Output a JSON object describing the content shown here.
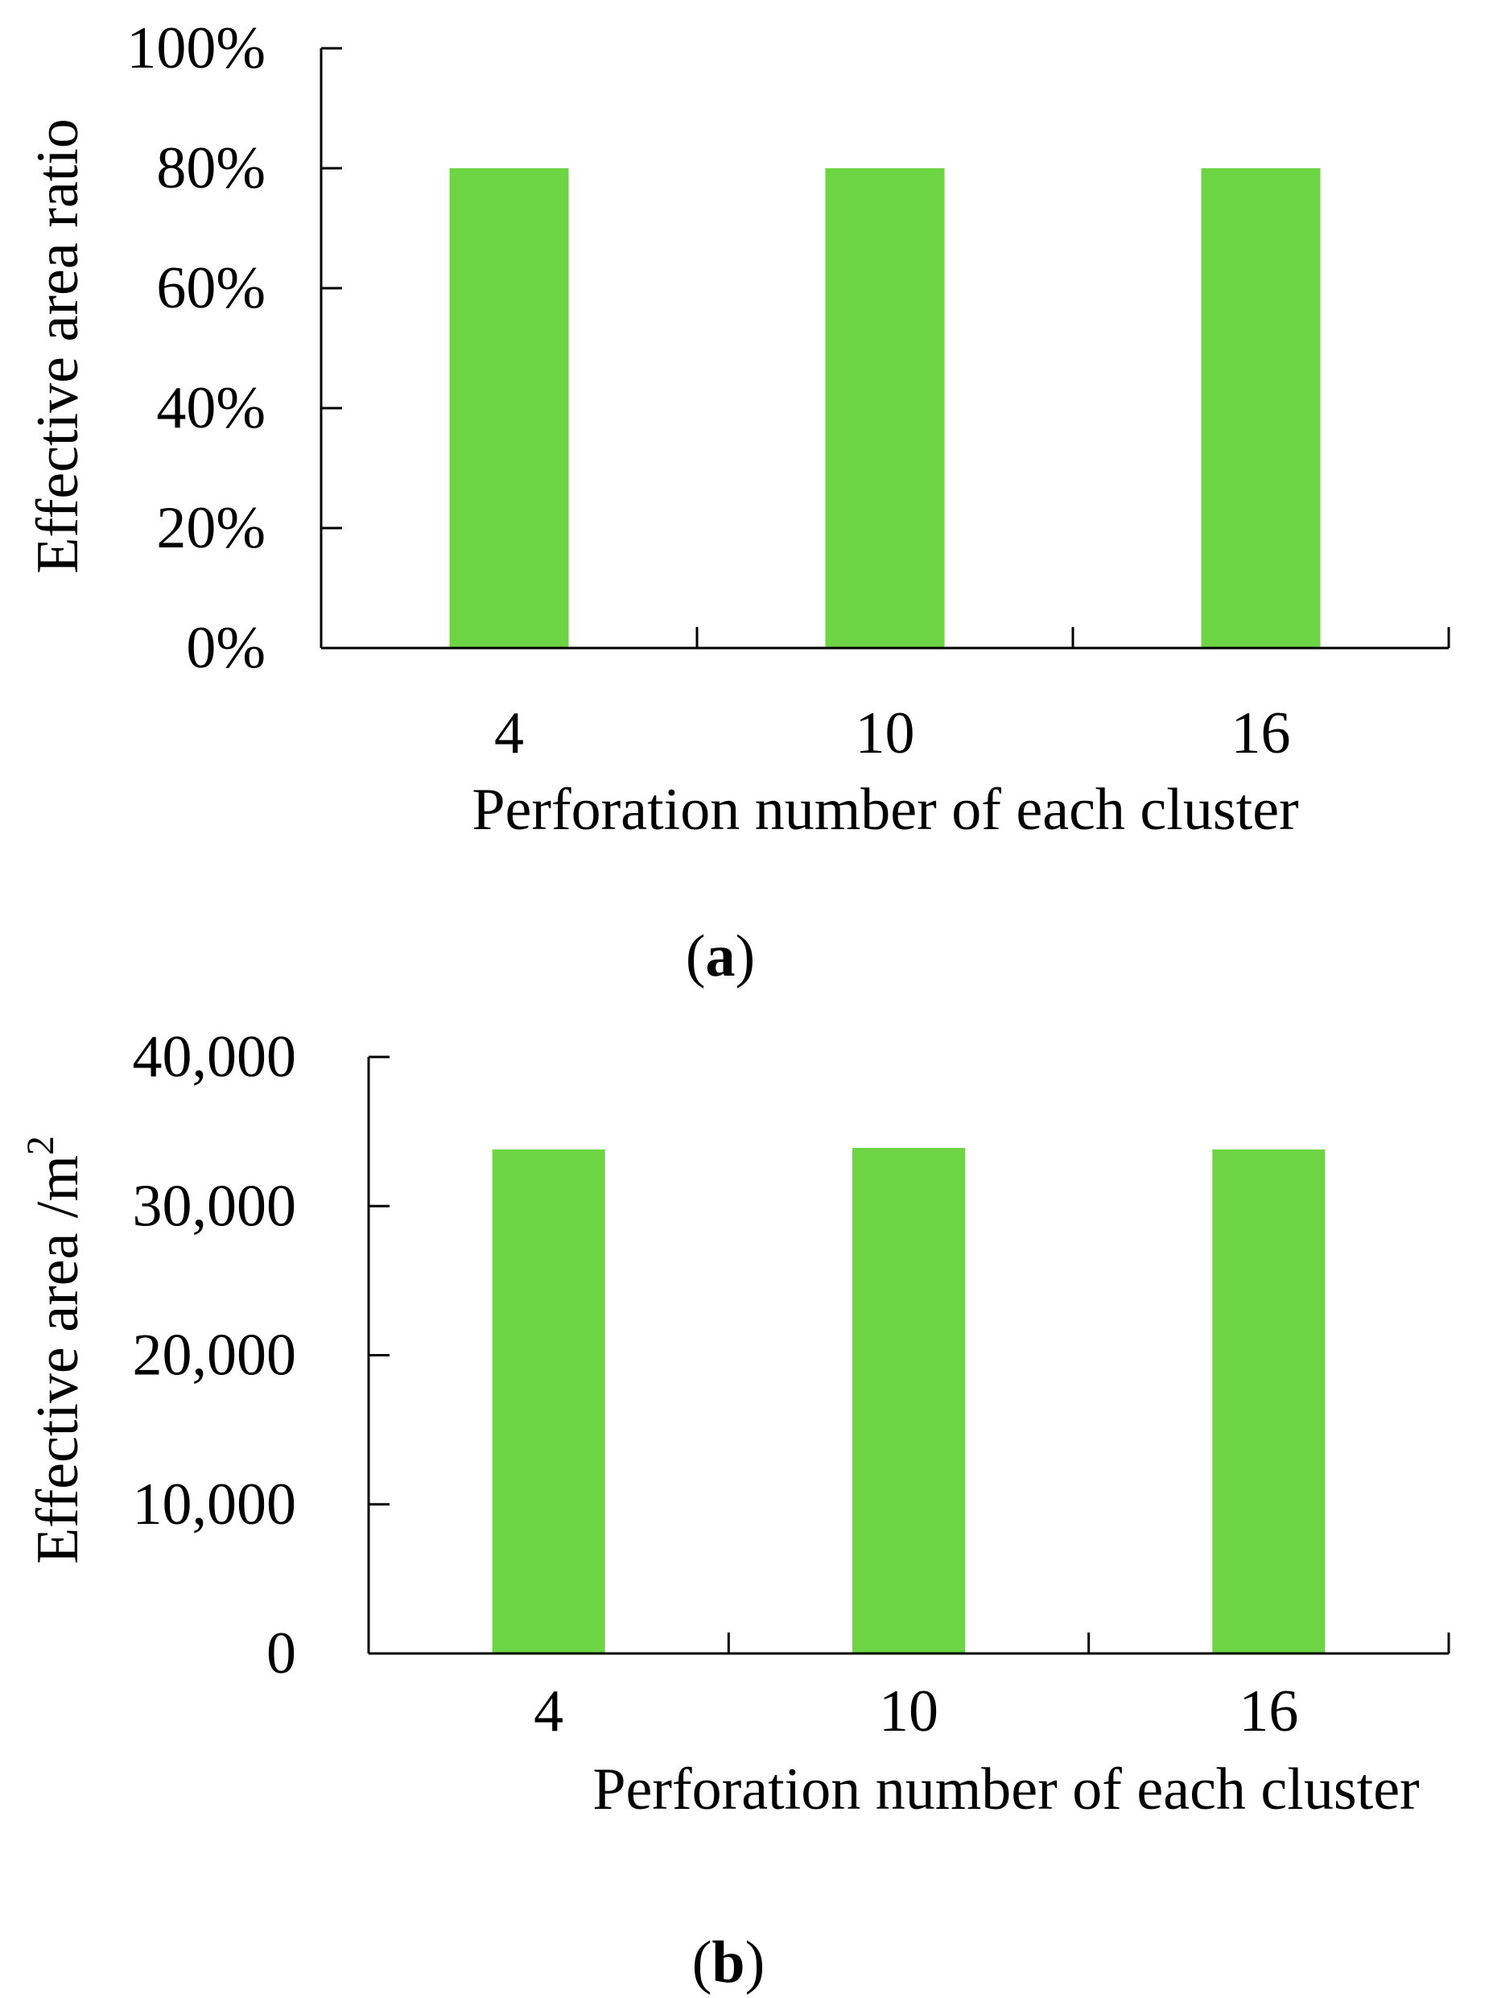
{
  "colors": {
    "bar": "#6dd443",
    "axis": "#000000",
    "background": "#ffffff"
  },
  "chart_data": [
    {
      "type": "bar",
      "panel_label": "a",
      "categories": [
        "4",
        "10",
        "16"
      ],
      "values": [
        80,
        80,
        80
      ],
      "ylim": [
        0,
        100
      ],
      "yticks": [
        0,
        20,
        40,
        60,
        80,
        100
      ],
      "ytick_labels": [
        "0%",
        "20%",
        "40%",
        "60%",
        "80%",
        "100%"
      ],
      "xlabel": "Perforation number of each cluster",
      "ylabel": "Effective area ratio",
      "grid": false,
      "legend": "none"
    },
    {
      "type": "bar",
      "panel_label": "b",
      "categories": [
        "4",
        "10",
        "16"
      ],
      "values": [
        33800,
        33900,
        33800
      ],
      "ylim": [
        0,
        40000
      ],
      "yticks": [
        0,
        10000,
        20000,
        30000,
        40000
      ],
      "ytick_labels": [
        "0",
        "10,000",
        "20,000",
        "30,000",
        "40,000"
      ],
      "xlabel": "Perforation number of each cluster",
      "ylabel_text": "Effective area /m",
      "ylabel_superscript": "2",
      "grid": false,
      "legend": "none"
    }
  ]
}
